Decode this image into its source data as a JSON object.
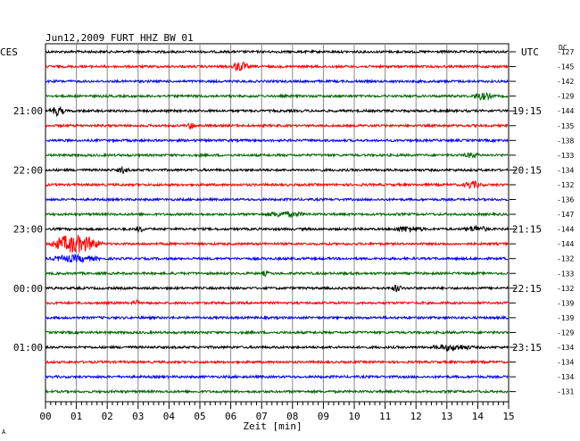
{
  "header": {
    "title": "Jun12,2009   FURT HHZ BW 01",
    "left_tz": "CES",
    "right_tz": "UTC",
    "dc_label": "DC"
  },
  "xaxis": {
    "label": "Zeit [min]",
    "ticks": [
      "00",
      "01",
      "02",
      "03",
      "04",
      "05",
      "06",
      "07",
      "08",
      "09",
      "10",
      "11",
      "12",
      "13",
      "14",
      "15"
    ]
  },
  "time_labels_left": [
    {
      "row": 4,
      "text": "21:00"
    },
    {
      "row": 8,
      "text": "22:00"
    },
    {
      "row": 12,
      "text": "23:00"
    },
    {
      "row": 16,
      "text": "00:00"
    },
    {
      "row": 20,
      "text": "01:00"
    }
  ],
  "time_labels_right": [
    {
      "row": 4,
      "text": "19:15"
    },
    {
      "row": 8,
      "text": "20:15"
    },
    {
      "row": 12,
      "text": "21:15"
    },
    {
      "row": 16,
      "text": "22:15"
    },
    {
      "row": 20,
      "text": "23:15"
    }
  ],
  "dc_offsets": [
    "-127",
    "-145",
    "-142",
    "-129",
    "-144",
    "-135",
    "-138",
    "-133",
    "-134",
    "-132",
    "-136",
    "-147",
    "-144",
    "-144",
    "-132",
    "-133",
    "-132",
    "-139",
    "-139",
    "-129",
    "-134",
    "-134",
    "-134",
    "-131"
  ],
  "colors": {
    "cycle": [
      "#000000",
      "#ff0000",
      "#0000ff",
      "#006600"
    ],
    "grid": "#888888",
    "frame": "#000000"
  },
  "chart_data": {
    "type": "line",
    "description_of_traces": "helicorder: 24 seismogram traces, each covering 15 minutes",
    "x_range_min": [
      0,
      15
    ],
    "rows": 24,
    "events": [
      {
        "row": 1,
        "start_min": 6.0,
        "end_min": 7.0,
        "amp": 0.9
      },
      {
        "row": 3,
        "start_min": 13.8,
        "end_min": 15.0,
        "amp": 0.6
      },
      {
        "row": 4,
        "start_min": 0.1,
        "end_min": 1.0,
        "amp": 0.8
      },
      {
        "row": 5,
        "start_min": 4.6,
        "end_min": 5.0,
        "amp": 0.6
      },
      {
        "row": 7,
        "start_min": 13.5,
        "end_min": 14.5,
        "amp": 0.4
      },
      {
        "row": 8,
        "start_min": 2.3,
        "end_min": 3.0,
        "amp": 0.5
      },
      {
        "row": 9,
        "start_min": 13.5,
        "end_min": 14.6,
        "amp": 0.6
      },
      {
        "row": 11,
        "start_min": 7.0,
        "end_min": 9.5,
        "amp": 0.4
      },
      {
        "row": 12,
        "start_min": 2.9,
        "end_min": 3.4,
        "amp": 0.5
      },
      {
        "row": 12,
        "start_min": 11.2,
        "end_min": 13.0,
        "amp": 0.5
      },
      {
        "row": 12,
        "start_min": 13.5,
        "end_min": 15.0,
        "amp": 0.5
      },
      {
        "row": 13,
        "start_min": 0.1,
        "end_min": 3.0,
        "amp": 1.8
      },
      {
        "row": 14,
        "start_min": 0.1,
        "end_min": 2.9,
        "amp": 0.6
      },
      {
        "row": 15,
        "start_min": 7.0,
        "end_min": 7.4,
        "amp": 0.4
      },
      {
        "row": 16,
        "start_min": 11.2,
        "end_min": 11.8,
        "amp": 0.6
      },
      {
        "row": 17,
        "start_min": 2.8,
        "end_min": 3.2,
        "amp": 0.5
      },
      {
        "row": 20,
        "start_min": 12.5,
        "end_min": 14.8,
        "amp": 0.5
      }
    ]
  }
}
